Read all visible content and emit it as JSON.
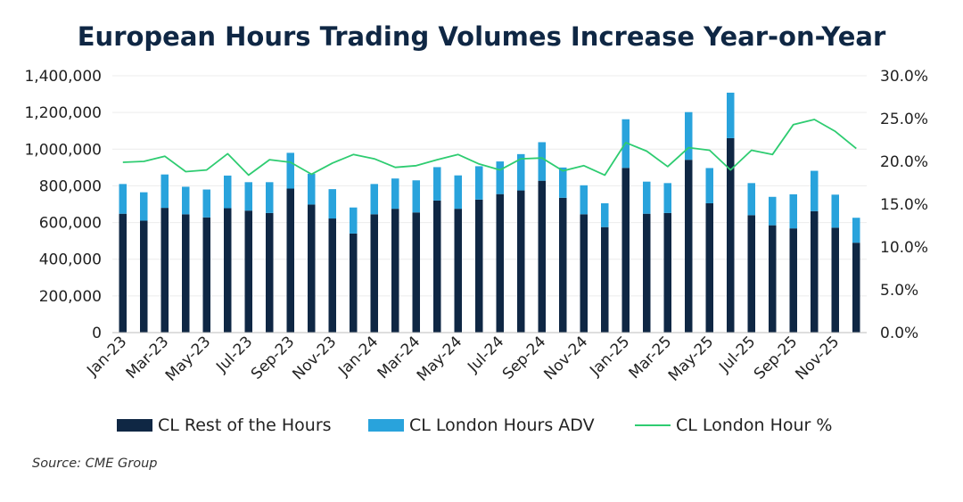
{
  "title": "European Hours Trading Volumes Increase Year-on-Year",
  "source": "Source: CME Group",
  "colors": {
    "rest": "#0f2744",
    "london": "#29a3dc",
    "pct": "#2ecc71",
    "grid": "#ececec"
  },
  "chart_data": {
    "type": "bar",
    "stacked": true,
    "categories": [
      "Jan-23",
      "Feb-23",
      "Mar-23",
      "Apr-23",
      "May-23",
      "Jun-23",
      "Jul-23",
      "Aug-23",
      "Sep-23",
      "Oct-23",
      "Nov-23",
      "Dec-23",
      "Jan-24",
      "Feb-24",
      "Mar-24",
      "Apr-24",
      "May-24",
      "Jun-24",
      "Jul-24",
      "Aug-24",
      "Sep-24",
      "Oct-24",
      "Nov-24",
      "Dec-24",
      "Jan-25",
      "Feb-25",
      "Mar-25",
      "Apr-25",
      "May-25",
      "Jun-25",
      "Jul-25",
      "Aug-25",
      "Sep-25",
      "Oct-25",
      "Nov-25",
      "Dec-25"
    ],
    "x_tick_labels": [
      "Jan-23",
      "Mar-23",
      "May-23",
      "Jul-23",
      "Sep-23",
      "Nov-23",
      "Jan-24",
      "Mar-24",
      "May-24",
      "Jul-24",
      "Sep-24",
      "Nov-24",
      "Jan-25",
      "Mar-25",
      "May-25",
      "Jul-25",
      "Sep-25",
      "Nov-25"
    ],
    "series": [
      {
        "name": "CL Rest of the Hours",
        "type": "bar",
        "values": [
          648000,
          610000,
          680000,
          645000,
          628000,
          678000,
          665000,
          652000,
          785000,
          698000,
          622000,
          540000,
          645000,
          675000,
          655000,
          720000,
          675000,
          725000,
          755000,
          775000,
          828000,
          735000,
          645000,
          575000,
          898000,
          648000,
          652000,
          942000,
          705000,
          1060000,
          640000,
          585000,
          568000,
          662000,
          572000,
          490000
        ]
      },
      {
        "name": "CL London Hours ADV",
        "type": "bar",
        "values": [
          162000,
          155000,
          182000,
          150000,
          152000,
          178000,
          155000,
          168000,
          195000,
          168000,
          160000,
          142000,
          165000,
          165000,
          175000,
          182000,
          182000,
          182000,
          178000,
          198000,
          210000,
          165000,
          158000,
          130000,
          265000,
          175000,
          163000,
          260000,
          192000,
          248000,
          175000,
          155000,
          186000,
          220000,
          180000,
          136000
        ]
      },
      {
        "name": "CL London Hour %",
        "type": "line",
        "axis": "right",
        "values": [
          19.9,
          20.0,
          20.6,
          18.8,
          19.0,
          20.9,
          18.4,
          20.2,
          19.9,
          18.5,
          19.8,
          20.8,
          20.3,
          19.3,
          19.5,
          20.2,
          20.8,
          19.7,
          19.0,
          20.3,
          20.4,
          18.9,
          19.5,
          18.4,
          22.2,
          21.2,
          19.4,
          21.6,
          21.3,
          19.0,
          21.3,
          20.8,
          24.3,
          24.9,
          23.5,
          21.5
        ]
      }
    ],
    "y_left": {
      "min": 0,
      "max": 1400000,
      "ticks": [
        "0",
        "200,000",
        "400,000",
        "600,000",
        "800,000",
        "1,000,000",
        "1,200,000",
        "1,400,000"
      ]
    },
    "y_right": {
      "min": 0,
      "max": 30,
      "ticks": [
        "0.0%",
        "5.0%",
        "10.0%",
        "15.0%",
        "20.0%",
        "25.0%",
        "30.0%"
      ]
    },
    "grid": true,
    "legend_position": "bottom"
  }
}
